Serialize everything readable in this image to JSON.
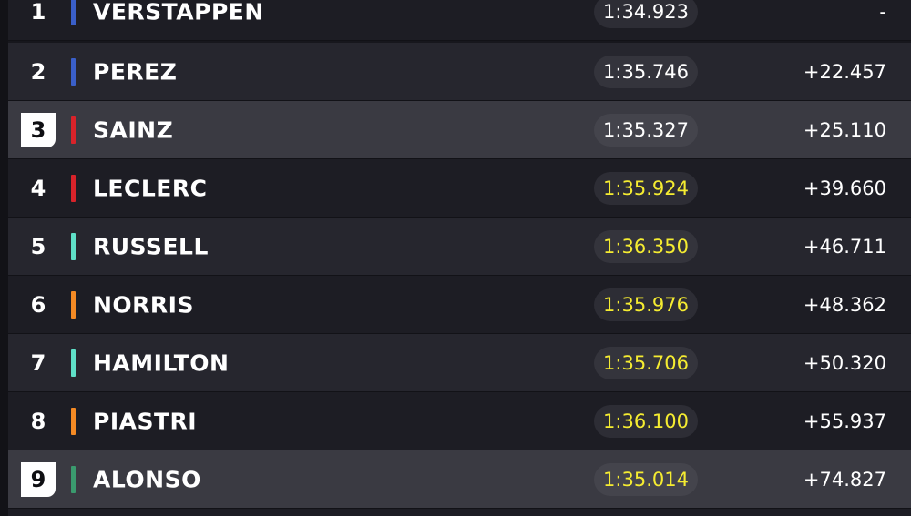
{
  "standings": [
    {
      "position": "1",
      "driver": "VERSTAPPEN",
      "lap_time": "1:34.923",
      "gap": "-",
      "team_color": "#3a5fc9",
      "lap_time_color": "white",
      "position_highlighted": false
    },
    {
      "position": "2",
      "driver": "PEREZ",
      "lap_time": "1:35.746",
      "gap": "+22.457",
      "team_color": "#3a5fc9",
      "lap_time_color": "white",
      "position_highlighted": false
    },
    {
      "position": "3",
      "driver": "SAINZ",
      "lap_time": "1:35.327",
      "gap": "+25.110",
      "team_color": "#d8232a",
      "lap_time_color": "white",
      "position_highlighted": true
    },
    {
      "position": "4",
      "driver": "LECLERC",
      "lap_time": "1:35.924",
      "gap": "+39.660",
      "team_color": "#d8232a",
      "lap_time_color": "yellow",
      "position_highlighted": false
    },
    {
      "position": "5",
      "driver": "RUSSELL",
      "lap_time": "1:36.350",
      "gap": "+46.711",
      "team_color": "#5fe0c8",
      "lap_time_color": "yellow",
      "position_highlighted": false
    },
    {
      "position": "6",
      "driver": "NORRIS",
      "lap_time": "1:35.976",
      "gap": "+48.362",
      "team_color": "#f48a24",
      "lap_time_color": "yellow",
      "position_highlighted": false
    },
    {
      "position": "7",
      "driver": "HAMILTON",
      "lap_time": "1:35.706",
      "gap": "+50.320",
      "team_color": "#5fe0c8",
      "lap_time_color": "yellow",
      "position_highlighted": false
    },
    {
      "position": "8",
      "driver": "PIASTRI",
      "lap_time": "1:36.100",
      "gap": "+55.937",
      "team_color": "#f48a24",
      "lap_time_color": "yellow",
      "position_highlighted": false
    },
    {
      "position": "9",
      "driver": "ALONSO",
      "lap_time": "1:35.014",
      "gap": "+74.827",
      "team_color": "#3a9a6e",
      "lap_time_color": "yellow",
      "position_highlighted": true
    }
  ],
  "colors": {
    "background": "#17171d",
    "fast_lap_text": "#f5ec31",
    "highlight_row": "#3a3a42"
  }
}
